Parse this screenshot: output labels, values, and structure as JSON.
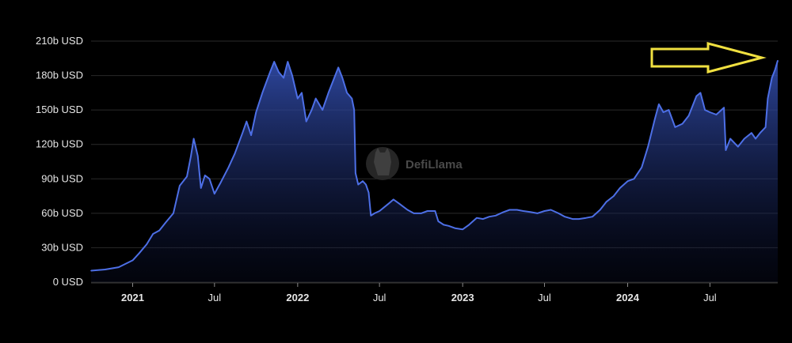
{
  "chart_data": {
    "type": "area",
    "title": "",
    "xlabel": "",
    "ylabel": "",
    "y_unit": "USD",
    "ylim": [
      0,
      210
    ],
    "y_ticks": [
      {
        "value": 0,
        "label": "0 USD"
      },
      {
        "value": 30,
        "label": "30b USD"
      },
      {
        "value": 60,
        "label": "60b USD"
      },
      {
        "value": 90,
        "label": "90b USD"
      },
      {
        "value": 120,
        "label": "120b USD"
      },
      {
        "value": 150,
        "label": "150b USD"
      },
      {
        "value": 180,
        "label": "180b USD"
      },
      {
        "value": 210,
        "label": "210b USD"
      }
    ],
    "xlim": [
      "2020-10-01",
      "2024-11-28"
    ],
    "x_ticks": [
      {
        "date": "2021-01-01",
        "label": "2021",
        "bold": true
      },
      {
        "date": "2021-07-01",
        "label": "Jul",
        "bold": false
      },
      {
        "date": "2022-01-01",
        "label": "2022",
        "bold": true
      },
      {
        "date": "2022-07-01",
        "label": "Jul",
        "bold": false
      },
      {
        "date": "2023-01-01",
        "label": "2023",
        "bold": true
      },
      {
        "date": "2023-07-01",
        "label": "Jul",
        "bold": false
      },
      {
        "date": "2024-01-01",
        "label": "2024",
        "bold": true
      },
      {
        "date": "2024-07-01",
        "label": "Jul",
        "bold": false
      }
    ],
    "grid": "horizontal",
    "series": [
      {
        "color": "#4d6fe6",
        "points": [
          [
            "2020-10-01",
            10
          ],
          [
            "2020-11-01",
            11
          ],
          [
            "2020-12-01",
            13
          ],
          [
            "2021-01-01",
            19
          ],
          [
            "2021-01-15",
            25
          ],
          [
            "2021-02-01",
            33
          ],
          [
            "2021-02-15",
            42
          ],
          [
            "2021-03-01",
            45
          ],
          [
            "2021-03-15",
            52
          ],
          [
            "2021-04-01",
            60
          ],
          [
            "2021-04-15",
            84
          ],
          [
            "2021-05-01",
            92
          ],
          [
            "2021-05-10",
            110
          ],
          [
            "2021-05-16",
            125
          ],
          [
            "2021-05-25",
            110
          ],
          [
            "2021-06-01",
            82
          ],
          [
            "2021-06-10",
            93
          ],
          [
            "2021-06-20",
            90
          ],
          [
            "2021-07-01",
            77
          ],
          [
            "2021-07-15",
            87
          ],
          [
            "2021-08-01",
            100
          ],
          [
            "2021-08-15",
            112
          ],
          [
            "2021-09-01",
            130
          ],
          [
            "2021-09-10",
            140
          ],
          [
            "2021-09-20",
            128
          ],
          [
            "2021-10-01",
            148
          ],
          [
            "2021-10-15",
            165
          ],
          [
            "2021-11-01",
            183
          ],
          [
            "2021-11-10",
            192
          ],
          [
            "2021-11-20",
            183
          ],
          [
            "2021-12-01",
            178
          ],
          [
            "2021-12-10",
            192
          ],
          [
            "2021-12-20",
            180
          ],
          [
            "2022-01-01",
            160
          ],
          [
            "2022-01-10",
            165
          ],
          [
            "2022-01-20",
            140
          ],
          [
            "2022-02-01",
            150
          ],
          [
            "2022-02-10",
            160
          ],
          [
            "2022-02-25",
            150
          ],
          [
            "2022-03-10",
            165
          ],
          [
            "2022-03-25",
            180
          ],
          [
            "2022-04-01",
            187
          ],
          [
            "2022-04-10",
            178
          ],
          [
            "2022-04-20",
            165
          ],
          [
            "2022-05-01",
            160
          ],
          [
            "2022-05-06",
            150
          ],
          [
            "2022-05-09",
            95
          ],
          [
            "2022-05-15",
            85
          ],
          [
            "2022-05-25",
            88
          ],
          [
            "2022-06-01",
            85
          ],
          [
            "2022-06-07",
            78
          ],
          [
            "2022-06-12",
            58
          ],
          [
            "2022-06-20",
            60
          ],
          [
            "2022-07-01",
            62
          ],
          [
            "2022-07-20",
            68
          ],
          [
            "2022-08-01",
            72
          ],
          [
            "2022-08-15",
            68
          ],
          [
            "2022-09-01",
            63
          ],
          [
            "2022-09-15",
            60
          ],
          [
            "2022-10-01",
            60
          ],
          [
            "2022-10-15",
            62
          ],
          [
            "2022-11-01",
            62
          ],
          [
            "2022-11-08",
            53
          ],
          [
            "2022-11-20",
            50
          ],
          [
            "2022-12-01",
            49
          ],
          [
            "2022-12-15",
            47
          ],
          [
            "2023-01-01",
            46
          ],
          [
            "2023-01-15",
            50
          ],
          [
            "2023-02-01",
            56
          ],
          [
            "2023-02-15",
            55
          ],
          [
            "2023-03-01",
            57
          ],
          [
            "2023-03-15",
            58
          ],
          [
            "2023-04-01",
            61
          ],
          [
            "2023-04-15",
            63
          ],
          [
            "2023-05-01",
            63
          ],
          [
            "2023-05-15",
            62
          ],
          [
            "2023-06-01",
            61
          ],
          [
            "2023-06-15",
            60
          ],
          [
            "2023-07-01",
            62
          ],
          [
            "2023-07-15",
            63
          ],
          [
            "2023-08-01",
            60
          ],
          [
            "2023-08-15",
            57
          ],
          [
            "2023-09-01",
            55
          ],
          [
            "2023-09-15",
            55
          ],
          [
            "2023-10-01",
            56
          ],
          [
            "2023-10-15",
            57
          ],
          [
            "2023-11-01",
            63
          ],
          [
            "2023-11-15",
            70
          ],
          [
            "2023-12-01",
            75
          ],
          [
            "2023-12-15",
            82
          ],
          [
            "2024-01-01",
            88
          ],
          [
            "2024-01-15",
            90
          ],
          [
            "2024-02-01",
            100
          ],
          [
            "2024-02-15",
            118
          ],
          [
            "2024-03-01",
            142
          ],
          [
            "2024-03-10",
            155
          ],
          [
            "2024-03-20",
            148
          ],
          [
            "2024-04-01",
            150
          ],
          [
            "2024-04-15",
            135
          ],
          [
            "2024-05-01",
            138
          ],
          [
            "2024-05-15",
            145
          ],
          [
            "2024-06-01",
            162
          ],
          [
            "2024-06-10",
            165
          ],
          [
            "2024-06-20",
            150
          ],
          [
            "2024-07-01",
            148
          ],
          [
            "2024-07-15",
            146
          ],
          [
            "2024-08-01",
            152
          ],
          [
            "2024-08-05",
            115
          ],
          [
            "2024-08-15",
            125
          ],
          [
            "2024-09-01",
            118
          ],
          [
            "2024-09-15",
            125
          ],
          [
            "2024-10-01",
            130
          ],
          [
            "2024-10-10",
            125
          ],
          [
            "2024-10-20",
            130
          ],
          [
            "2024-11-01",
            135
          ],
          [
            "2024-11-06",
            160
          ],
          [
            "2024-11-15",
            178
          ],
          [
            "2024-11-22",
            185
          ],
          [
            "2024-11-28",
            193
          ]
        ]
      }
    ],
    "watermark": "DefiLlama",
    "annotation_arrow": {
      "color": "#f0e040",
      "shape": "outlined arrow pointing right"
    }
  }
}
